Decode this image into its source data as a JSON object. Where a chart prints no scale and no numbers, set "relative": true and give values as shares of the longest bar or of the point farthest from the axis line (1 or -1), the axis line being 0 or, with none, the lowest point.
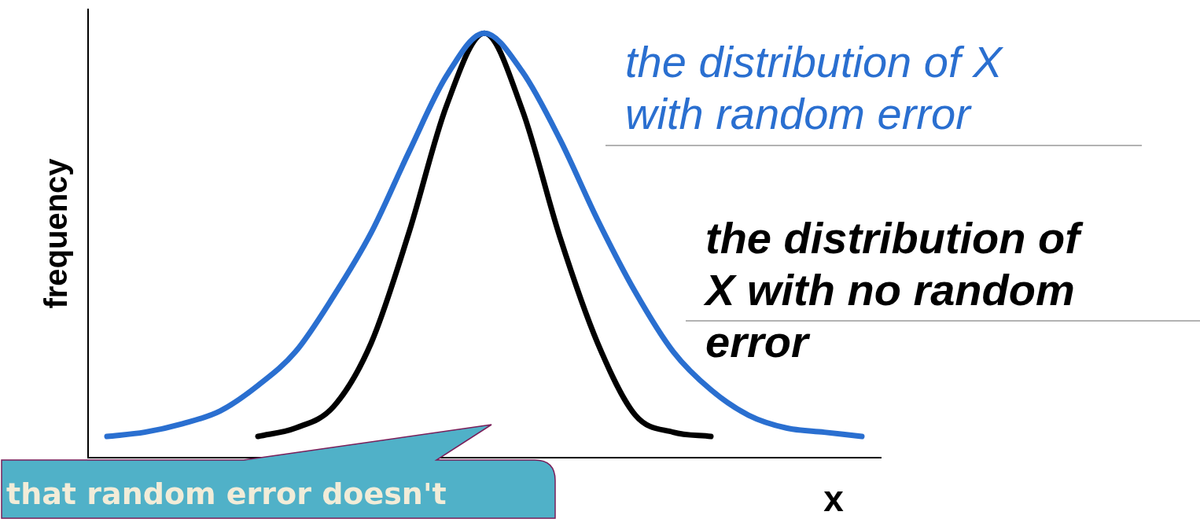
{
  "chart_data": {
    "type": "line",
    "relative": true,
    "xlabel": "x",
    "ylabel": "frequency",
    "legend": false,
    "grid": false,
    "marker": "none",
    "line_style": "solid",
    "categories": [
      null,
      null,
      null,
      null,
      null,
      null,
      null,
      null,
      null,
      null,
      null,
      null,
      null,
      null,
      null,
      null,
      null,
      null,
      null,
      null,
      null
    ],
    "series": [
      {
        "name": "the distribution of X with random error",
        "color": "#2a6fd0",
        "values": [
          0.05,
          0.06,
          0.08,
          0.11,
          0.17,
          0.25,
          0.38,
          0.53,
          0.72,
          0.9,
          1.0,
          0.91,
          0.75,
          0.56,
          0.39,
          0.25,
          0.16,
          0.1,
          0.07,
          0.06,
          0.05
        ]
      },
      {
        "name": "the distribution of X with no random error",
        "color": "#000000",
        "values": [
          null,
          null,
          null,
          null,
          0.05,
          0.07,
          0.12,
          0.27,
          0.53,
          0.83,
          1.0,
          0.82,
          0.52,
          0.27,
          0.1,
          0.06,
          0.05,
          null,
          null,
          null,
          null
        ]
      }
    ],
    "annotations": [
      "that random error doesn't"
    ]
  }
}
